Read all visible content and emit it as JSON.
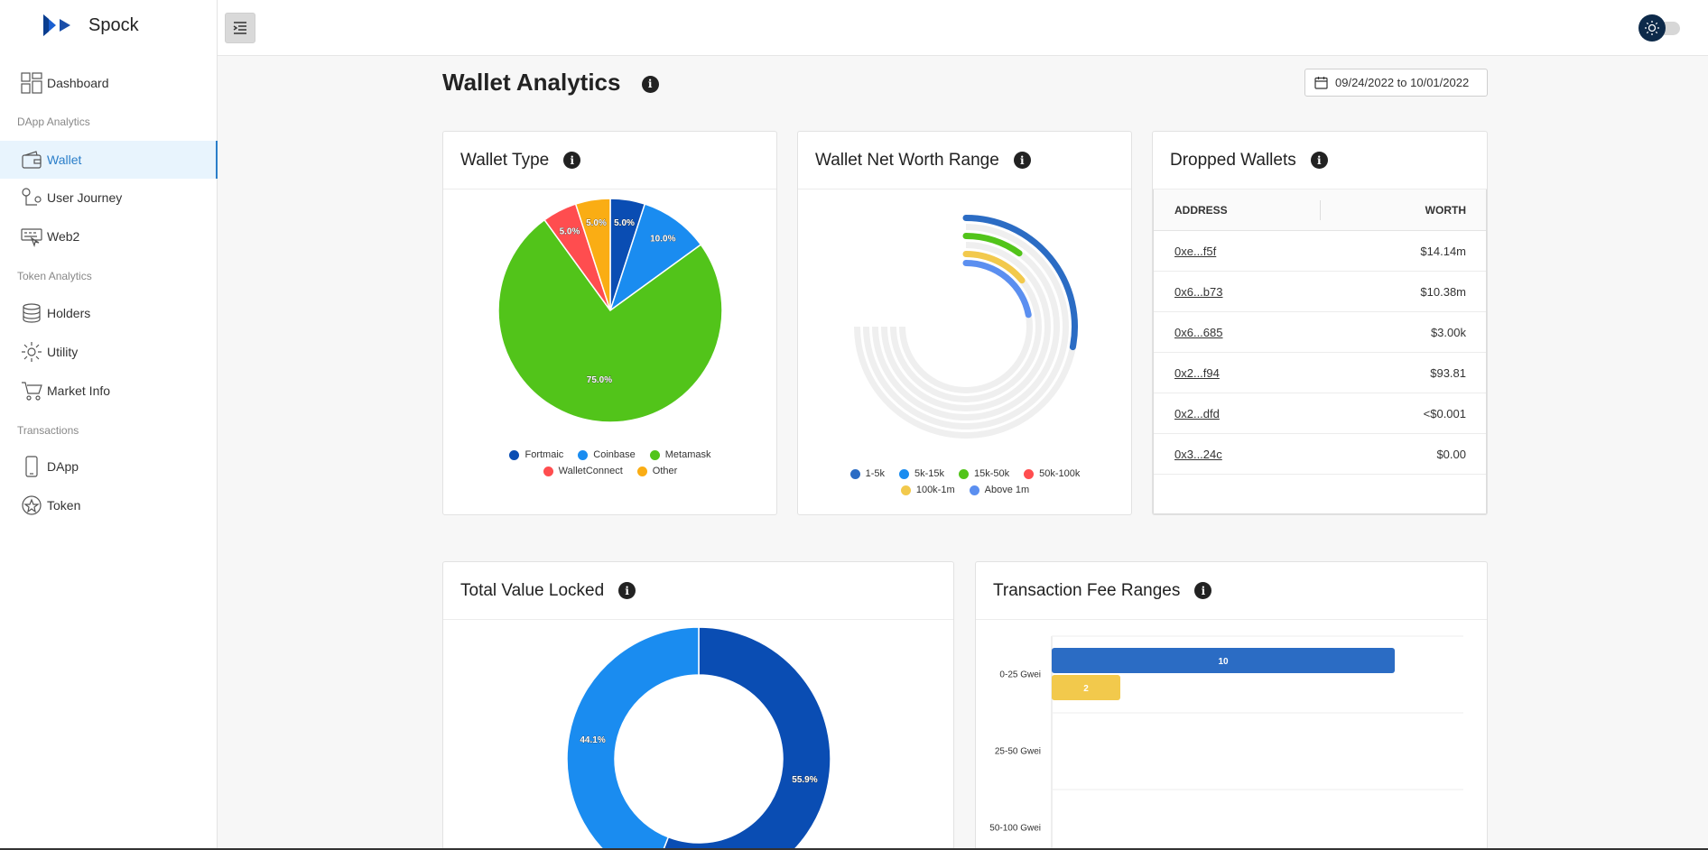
{
  "app": {
    "name": "Spock"
  },
  "sidebar": {
    "items": [
      {
        "label": "Dashboard"
      },
      {
        "label": "Wallet"
      },
      {
        "label": "User Journey"
      },
      {
        "label": "Web2"
      },
      {
        "label": "Holders"
      },
      {
        "label": "Utility"
      },
      {
        "label": "Market Info"
      },
      {
        "label": "DApp"
      },
      {
        "label": "Token"
      }
    ],
    "sections": [
      "DApp Analytics",
      "Token Analytics",
      "Transactions"
    ]
  },
  "header": {
    "title": "Wallet Analytics",
    "date_range": "09/24/2022 to 10/01/2022"
  },
  "cards": {
    "wallet_type": {
      "title": "Wallet Type"
    },
    "net_worth": {
      "title": "Wallet Net Worth Range"
    },
    "dropped": {
      "title": "Dropped Wallets",
      "columns": [
        "ADDRESS",
        "WORTH"
      ],
      "rows": [
        {
          "address": "0xe...f5f",
          "worth": "$14.14m"
        },
        {
          "address": "0x6...b73",
          "worth": "$10.38m"
        },
        {
          "address": "0x6...685",
          "worth": "$3.00k"
        },
        {
          "address": "0x2...f94",
          "worth": "$93.81"
        },
        {
          "address": "0x2...dfd",
          "worth": "<$0.001"
        },
        {
          "address": "0x3...24c",
          "worth": "$0.00"
        }
      ]
    },
    "tvl": {
      "title": "Total Value Locked"
    },
    "fees": {
      "title": "Transaction Fee Ranges"
    }
  },
  "colors": {
    "dark_blue": "#0a4db3",
    "blue": "#1a8cf0",
    "green": "#52c41a",
    "red": "#ff4d4f",
    "orange": "#faad14",
    "yellow": "#f2c94c",
    "light_blue": "#5b8ff0",
    "bar_blue": "#2b6cc4"
  },
  "chart_data": [
    {
      "type": "pie",
      "categories": [
        "Fortmaic",
        "Coinbase",
        "Metamask",
        "WalletConnect",
        "Other"
      ],
      "values": [
        5.0,
        10.0,
        75.0,
        5.0,
        5.0
      ],
      "labels": [
        "5.0%",
        "10.0%",
        "75.0%",
        "5.0%",
        "5.0%"
      ],
      "colors": [
        "#0a4db3",
        "#1a8cf0",
        "#52c41a",
        "#ff4d4f",
        "#faad14"
      ]
    },
    {
      "type": "radial_bar",
      "categories": [
        "1-5k",
        "5k-15k",
        "15k-50k",
        "50k-100k",
        "100k-1m",
        "Above 1m"
      ],
      "values": [
        28,
        0,
        10,
        0,
        14,
        22
      ],
      "max": 100,
      "colors": [
        "#2b6cc4",
        "#1a8cf0",
        "#52c41a",
        "#ff4d4f",
        "#f2c94c",
        "#5b8ff0"
      ]
    },
    {
      "type": "pie",
      "variant": "donut",
      "values": [
        55.9,
        44.1
      ],
      "labels": [
        "55.9%",
        "44.1%"
      ],
      "colors": [
        "#0a4db3",
        "#1a8cf0"
      ]
    },
    {
      "type": "bar",
      "orientation": "horizontal",
      "categories": [
        "0-25 Gwei",
        "25-50 Gwei",
        "50-100 Gwei"
      ],
      "series": [
        {
          "values": [
            10,
            0,
            0
          ],
          "color": "#2b6cc4"
        },
        {
          "values": [
            2,
            0,
            0
          ],
          "color": "#f2c94c"
        }
      ],
      "xlim": [
        0,
        12
      ]
    }
  ]
}
